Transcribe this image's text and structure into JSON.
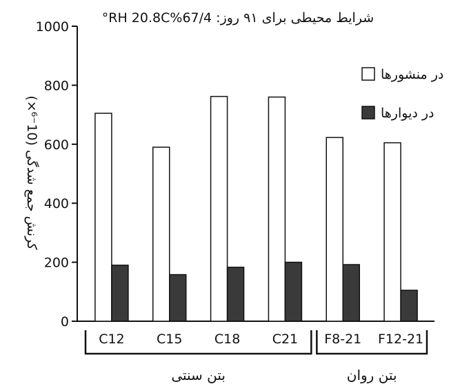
{
  "chart_data": {
    "type": "bar",
    "title": "شرایط محیطی برای ۹۱ روز: 67/4%RH 20.8C°",
    "ylabel": "کرنش جمع شدگی (10⁻⁶×)",
    "xlabel": "",
    "ylim": [
      0,
      1000
    ],
    "yticks": [
      0,
      200,
      400,
      600,
      800,
      1000
    ],
    "categories": [
      "C12",
      "C15",
      "C18",
      "C21",
      "F8-21",
      "F12-21"
    ],
    "series": [
      {
        "name": "در منشورها",
        "color": "#ffffff",
        "values": [
          705,
          590,
          762,
          760,
          623,
          605
        ]
      },
      {
        "name": "در دیوارها",
        "color": "#3a3a3a",
        "values": [
          190,
          158,
          183,
          200,
          192,
          105
        ]
      }
    ],
    "groups": [
      {
        "label": "بتن سنتی",
        "categories": [
          "C12",
          "C15",
          "C18",
          "C21"
        ]
      },
      {
        "label": "بتن روان",
        "categories": [
          "F8-21",
          "F12-21"
        ]
      }
    ],
    "legend_position": "top-right",
    "grid": false
  }
}
